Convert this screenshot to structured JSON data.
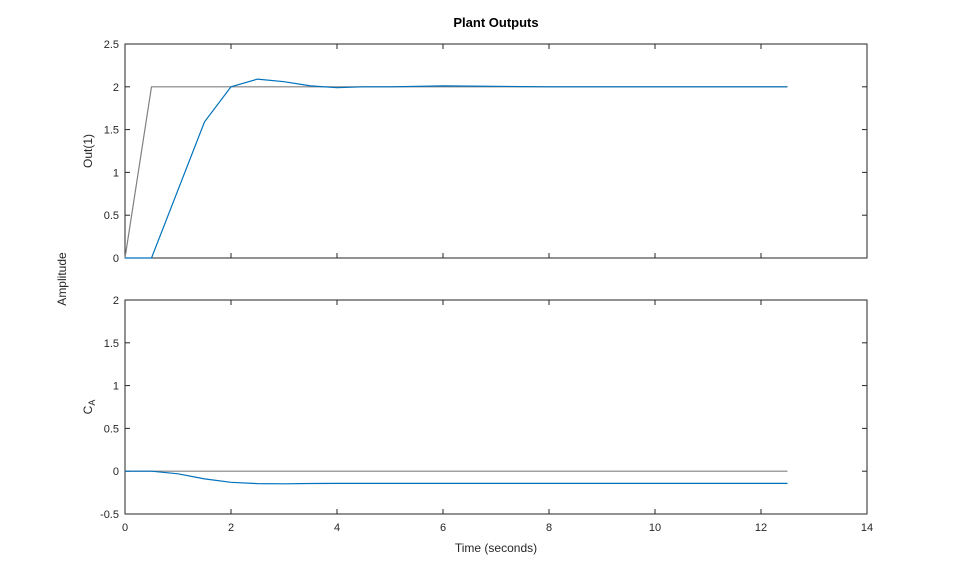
{
  "figure": {
    "title": "Plant Outputs",
    "xlabel": "Time (seconds)",
    "shared_ylabel": "Amplitude"
  },
  "colors": {
    "reference": "#808080",
    "response": "#0072BD",
    "axes": "#262626"
  },
  "chart_data": [
    {
      "type": "line",
      "title": "Plant Outputs",
      "xlabel": "Time (seconds)",
      "ylabel": "Out(1)",
      "xlim": [
        0,
        14
      ],
      "ylim": [
        0,
        2.5
      ],
      "xticks": [
        0,
        2,
        4,
        6,
        8,
        10,
        12,
        14
      ],
      "yticks": [
        0,
        0.5,
        1,
        1.5,
        2,
        2.5
      ],
      "grid": false,
      "series": [
        {
          "role": "reference",
          "color": "#808080",
          "x": [
            0,
            0.5,
            12.5
          ],
          "y": [
            0,
            2,
            2
          ]
        },
        {
          "role": "response",
          "color": "#0072BD",
          "x": [
            0,
            0.5,
            1.5,
            2,
            2.5,
            3,
            3.5,
            4,
            4.5,
            5,
            6,
            8,
            10,
            12.5
          ],
          "y": [
            0,
            0,
            1.59,
            2.0,
            2.09,
            2.06,
            2.01,
            1.99,
            2.0,
            2.0,
            2.01,
            2.0,
            2.0,
            2.0
          ]
        }
      ]
    },
    {
      "type": "line",
      "title": "",
      "xlabel": "Time (seconds)",
      "ylabel": "C",
      "ylabel_sub": "A",
      "xlim": [
        0,
        14
      ],
      "ylim": [
        -0.5,
        2
      ],
      "xticks": [
        0,
        2,
        4,
        6,
        8,
        10,
        12,
        14
      ],
      "yticks": [
        -0.5,
        0,
        0.5,
        1,
        1.5,
        2
      ],
      "grid": false,
      "series": [
        {
          "role": "reference",
          "color": "#808080",
          "x": [
            0,
            12.5
          ],
          "y": [
            0,
            0
          ]
        },
        {
          "role": "response",
          "color": "#0072BD",
          "x": [
            0,
            0.5,
            1,
            1.5,
            2,
            2.5,
            3,
            3.5,
            4,
            5,
            6,
            8,
            10,
            12.5
          ],
          "y": [
            0,
            0,
            -0.03,
            -0.09,
            -0.13,
            -0.145,
            -0.147,
            -0.144,
            -0.142,
            -0.142,
            -0.142,
            -0.142,
            -0.142,
            -0.142
          ]
        }
      ]
    }
  ]
}
